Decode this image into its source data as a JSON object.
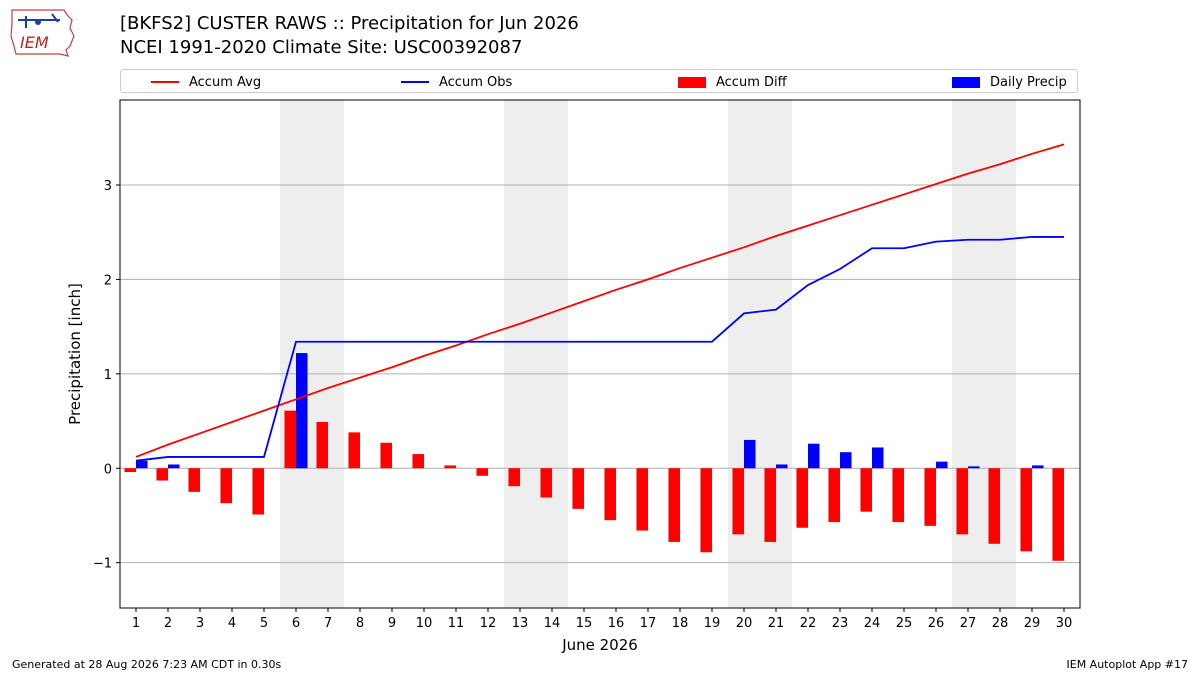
{
  "header": {
    "logo_text": "IEM",
    "title_line1": "[BKFS2] CUSTER RAWS :: Precipitation for Jun 2026",
    "title_line2": "NCEI 1991-2020 Climate Site: USC00392087"
  },
  "footer": {
    "left": "Generated at 28 Aug 2026 7:23 AM CDT in 0.30s",
    "right": "IEM Autoplot App #17"
  },
  "chart_data": {
    "type": "bar",
    "xlabel": "June 2026",
    "ylabel": "Precipitation [inch]",
    "x": [
      1,
      2,
      3,
      4,
      5,
      6,
      7,
      8,
      9,
      10,
      11,
      12,
      13,
      14,
      15,
      16,
      17,
      18,
      19,
      20,
      21,
      22,
      23,
      24,
      25,
      26,
      27,
      28,
      29,
      30
    ],
    "xlim": [
      0.5,
      30.5
    ],
    "ylim": [
      -1.48,
      3.9
    ],
    "yticks": [
      -1,
      0,
      1,
      2,
      3
    ],
    "ytick_labels": [
      "−1",
      "0",
      "1",
      "2",
      "3"
    ],
    "grid": "y",
    "legend_position": "top",
    "weekend_shading": [
      [
        6,
        7
      ],
      [
        13,
        14
      ],
      [
        20,
        21
      ],
      [
        27,
        28
      ]
    ],
    "series": [
      {
        "name": "Accum Avg",
        "kind": "line",
        "color": "#ff0000",
        "values": [
          0.12,
          0.25,
          0.37,
          0.49,
          0.61,
          0.73,
          0.85,
          0.96,
          1.07,
          1.19,
          1.3,
          1.42,
          1.53,
          1.65,
          1.77,
          1.89,
          2.0,
          2.12,
          2.23,
          2.34,
          2.46,
          2.57,
          2.68,
          2.79,
          2.9,
          3.01,
          3.12,
          3.22,
          3.33,
          3.43
        ]
      },
      {
        "name": "Accum Obs",
        "kind": "line",
        "color": "#0000ff",
        "values": [
          0.08,
          0.12,
          0.12,
          0.12,
          0.12,
          1.34,
          1.34,
          1.34,
          1.34,
          1.34,
          1.34,
          1.34,
          1.34,
          1.34,
          1.34,
          1.34,
          1.34,
          1.34,
          1.34,
          1.64,
          1.68,
          1.94,
          2.11,
          2.33,
          2.33,
          2.4,
          2.42,
          2.42,
          2.45,
          2.45
        ]
      },
      {
        "name": "Accum Diff",
        "kind": "bar",
        "color": "#ff0000",
        "values": [
          -0.04,
          -0.13,
          -0.25,
          -0.37,
          -0.49,
          0.61,
          0.49,
          0.38,
          0.27,
          0.15,
          0.03,
          -0.08,
          -0.19,
          -0.31,
          -0.43,
          -0.55,
          -0.66,
          -0.78,
          -0.89,
          -0.7,
          -0.78,
          -0.63,
          -0.57,
          -0.46,
          -0.57,
          -0.61,
          -0.7,
          -0.8,
          -0.88,
          -0.98
        ]
      },
      {
        "name": "Daily Precip",
        "kind": "bar",
        "color": "#0000ff",
        "values": [
          0.08,
          0.04,
          0.0,
          0.0,
          0.0,
          1.22,
          0.0,
          0.0,
          0.0,
          0.0,
          0.0,
          0.0,
          0.0,
          0.0,
          0.0,
          0.0,
          0.0,
          0.0,
          0.0,
          0.3,
          0.04,
          0.26,
          0.17,
          0.22,
          0.0,
          0.07,
          0.02,
          0.0,
          0.03,
          0.0
        ]
      }
    ]
  }
}
